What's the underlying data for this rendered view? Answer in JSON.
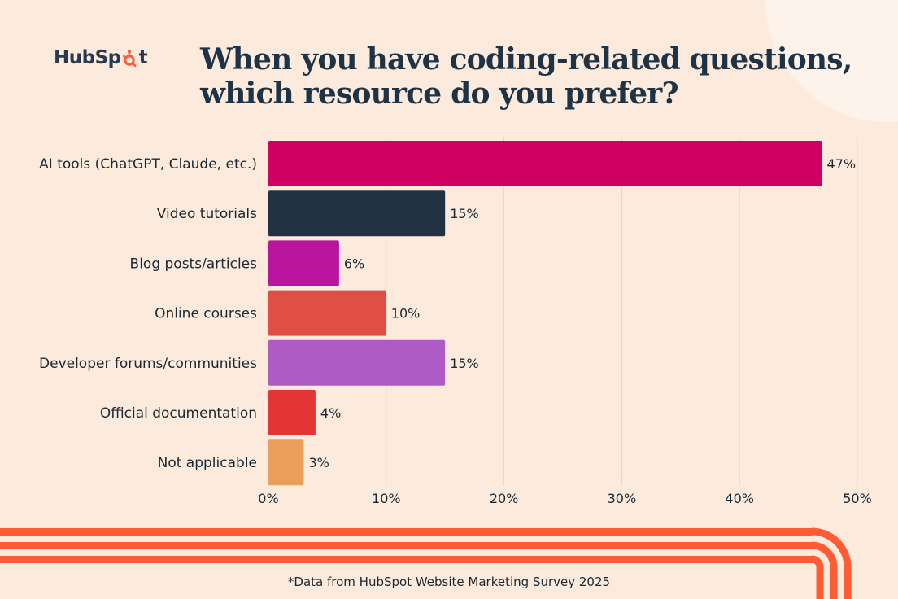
{
  "brand": {
    "logo_text_a": "HubSp",
    "logo_text_b": "t",
    "accent_color": "#ff5c35"
  },
  "chart_data": {
    "type": "bar",
    "orientation": "horizontal",
    "title_lines": [
      "When you have coding-related questions,",
      "which resource do you prefer?"
    ],
    "categories": [
      "AI tools (ChatGPT, Claude, etc.)",
      "Video tutorials",
      "Blog posts/articles",
      "Online courses",
      "Developer forums/communities",
      "Official documentation",
      "Not applicable"
    ],
    "values": [
      47,
      15,
      6,
      10,
      15,
      4,
      3
    ],
    "value_labels": [
      "47%",
      "15%",
      "6%",
      "10%",
      "15%",
      "4%",
      "3%"
    ],
    "colors": [
      "#cf0062",
      "#213343",
      "#b9149e",
      "#e04f46",
      "#ae5bc6",
      "#e33535",
      "#e99e5a"
    ],
    "xlim": [
      0,
      50
    ],
    "xticks": [
      0,
      10,
      20,
      30,
      40,
      50
    ],
    "xtick_labels": [
      "0%",
      "10%",
      "20%",
      "30%",
      "40%",
      "50%"
    ],
    "grid": true,
    "legend": "none"
  },
  "footnote": "*Data from HubSpot Website Marketing Survey 2025"
}
